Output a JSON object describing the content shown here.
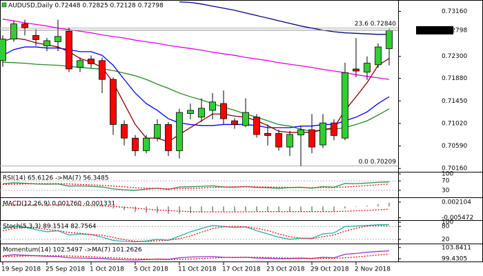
{
  "chart_data": [
    {
      "type": "candlestick",
      "title": "AUDUSD,Daily  0.72448 0.72825 0.72128 0.72798",
      "categories": [
        "19 Sep 2018",
        null,
        null,
        null,
        "25 Sep 2018",
        null,
        null,
        null,
        "1 Oct 2018",
        null,
        null,
        null,
        "5 Oct 2018",
        null,
        null,
        null,
        "11 Oct 2018",
        null,
        null,
        null,
        "17 Oct 2018",
        null,
        null,
        null,
        "23 Oct 2018",
        null,
        null,
        null,
        "29 Oct 2018",
        null,
        null,
        null,
        "2 Nov 2018",
        null,
        null,
        null
      ],
      "open": [
        0.7222,
        0.7263,
        0.7292,
        0.727,
        0.725,
        0.7258,
        0.7278,
        0.7209,
        0.7225,
        0.7222,
        0.7186,
        0.71,
        0.7074,
        0.705,
        0.7074,
        0.71,
        0.705,
        0.7121,
        0.7114,
        0.7127,
        0.714,
        0.7107,
        0.7098,
        0.7114,
        0.7083,
        0.7083,
        0.7057,
        0.708,
        0.709,
        0.7061,
        0.7103,
        0.7074,
        0.7206,
        0.72,
        0.7214,
        0.72448
      ],
      "high": [
        0.727,
        0.7298,
        0.73,
        0.7282,
        0.7265,
        0.73,
        0.7285,
        0.7228,
        0.7232,
        0.7228,
        0.719,
        0.7108,
        0.708,
        0.708,
        0.711,
        0.7105,
        0.713,
        0.714,
        0.715,
        0.716,
        0.7165,
        0.7112,
        0.715,
        0.712,
        0.71,
        0.709,
        0.7088,
        0.7098,
        0.712,
        0.712,
        0.711,
        0.7218,
        0.7265,
        0.723,
        0.7255,
        0.72825
      ],
      "low": [
        0.721,
        0.7258,
        0.727,
        0.725,
        0.724,
        0.724,
        0.72,
        0.72,
        0.7208,
        0.716,
        0.708,
        0.706,
        0.704,
        0.7045,
        0.7068,
        0.704,
        0.7035,
        0.711,
        0.7105,
        0.711,
        0.71,
        0.7092,
        0.7095,
        0.7075,
        0.706,
        0.705,
        0.704,
        0.70209,
        0.7045,
        0.7055,
        0.707,
        0.707,
        0.719,
        0.7185,
        0.7208,
        0.72128
      ],
      "close": [
        0.7263,
        0.7292,
        0.7285,
        0.7262,
        0.726,
        0.7268,
        0.7206,
        0.7222,
        0.7216,
        0.7186,
        0.71,
        0.7074,
        0.705,
        0.7074,
        0.71,
        0.705,
        0.7123,
        0.7127,
        0.7131,
        0.7143,
        0.7111,
        0.71,
        0.7123,
        0.7081,
        0.7079,
        0.7057,
        0.7081,
        0.709,
        0.7057,
        0.7103,
        0.7079,
        0.7199,
        0.7202,
        0.7217,
        0.7248,
        0.72798
      ],
      "up_color": "#32cd32",
      "down_color": "#ff0000",
      "overlays": [
        {
          "color": "#e600e6",
          "values": [
            0.7301,
            0.7298,
            0.7294,
            0.7291,
            0.7288,
            0.7284,
            0.7281,
            0.7278,
            0.7275,
            0.7271,
            0.7268,
            0.7265,
            0.7261,
            0.7258,
            0.7255,
            0.7251,
            0.7248,
            0.7245,
            0.7242,
            0.7238,
            0.7235,
            0.7232,
            0.7228,
            0.7225,
            0.7222,
            0.7218,
            0.7215,
            0.7212,
            0.7209,
            0.7205,
            0.7202,
            0.7199,
            0.7195,
            0.7192,
            0.7189,
            0.7186
          ]
        },
        {
          "color": "#000080",
          "values": [
            null,
            null,
            null,
            null,
            null,
            null,
            null,
            null,
            null,
            null,
            null,
            null,
            null,
            null,
            null,
            null,
            0.7334,
            0.7333,
            0.733,
            0.7326,
            0.7322,
            0.7318,
            0.7313,
            0.7308,
            0.7303,
            0.7298,
            0.7293,
            0.7288,
            0.7284,
            0.728,
            0.7277,
            0.7275,
            0.7274,
            0.7273,
            0.7272,
            0.7272
          ]
        },
        {
          "color": "#228b22",
          "values": [
            0.7219,
            0.7218,
            0.7217,
            0.7215,
            0.7214,
            0.7213,
            0.7211,
            0.7209,
            0.7207,
            0.7206,
            0.7203,
            0.7198,
            0.7193,
            0.7186,
            0.7177,
            0.7169,
            0.716,
            0.7153,
            0.7147,
            0.714,
            0.7133,
            0.7127,
            0.712,
            0.7114,
            0.7107,
            0.71,
            0.7097,
            0.7091,
            0.7087,
            0.709,
            0.7091,
            0.7094,
            0.71,
            0.7107,
            0.7118,
            0.713
          ]
        },
        {
          "color": "#0000ff",
          "values": [
            0.7232,
            0.7243,
            0.7248,
            0.7248,
            0.7246,
            0.7246,
            0.7243,
            0.7239,
            0.7239,
            0.7232,
            0.7213,
            0.7186,
            0.716,
            0.714,
            0.7127,
            0.7111,
            0.7103,
            0.71,
            0.7098,
            0.7098,
            0.71,
            0.71,
            0.71,
            0.7098,
            0.7094,
            0.7094,
            0.7094,
            0.7097,
            0.7097,
            0.71,
            0.71,
            0.7107,
            0.7114,
            0.7124,
            0.714,
            0.7153
          ]
        },
        {
          "color": "#8b0000",
          "values": [
            0.7259,
            0.7265,
            0.7262,
            0.7256,
            0.7252,
            0.7248,
            0.7239,
            0.7226,
            0.7219,
            0.7209,
            0.718,
            0.714,
            0.71,
            0.7074,
            0.7074,
            0.7067,
            0.7081,
            0.7094,
            0.7107,
            0.712,
            0.712,
            0.7116,
            0.7114,
            0.7107,
            0.7098,
            0.7087,
            0.7085,
            0.7085,
            0.7085,
            0.709,
            0.7094,
            0.7127,
            0.7153,
            0.718,
            0.7213,
            0.7226
          ]
        }
      ],
      "levels": [
        {
          "label": "23.6 0.72840",
          "value": 0.7284
        },
        {
          "label": "0.0 0.70209",
          "value": 0.70209
        }
      ],
      "current_price": {
        "value": 0.72798,
        "label": "0.72798"
      },
      "ylim": [
        0.7011,
        0.7335
      ],
      "yticks": [
        {
          "value": 0.7316,
          "label": "0.73160"
        },
        {
          "value": 0.723,
          "label": "0.72300"
        },
        {
          "value": 0.7188,
          "label": "0.71880"
        },
        {
          "value": 0.7145,
          "label": "0.71450"
        },
        {
          "value": 0.7102,
          "label": "0.71020"
        },
        {
          "value": 0.7059,
          "label": "0.70590"
        },
        {
          "value": 0.7016,
          "label": "0.70160"
        }
      ]
    },
    {
      "type": "line",
      "title": "RSI(14) 65.6126 ->MA(7) 56.3485",
      "series": [
        {
          "color": "#2e8b57",
          "values": [
            58,
            62,
            60,
            57,
            56,
            57,
            48,
            49,
            47,
            44,
            36,
            32,
            30,
            35,
            39,
            34,
            44,
            45,
            47,
            49,
            44,
            43,
            46,
            42,
            41,
            38,
            42,
            43,
            39,
            46,
            43,
            59,
            58,
            61,
            64,
            65.6126
          ]
        },
        {
          "color": "#ff0000",
          "dash": true,
          "values": [
            55,
            56,
            57,
            58,
            58,
            58,
            57,
            55,
            53,
            51,
            48,
            45,
            41,
            39,
            38,
            36,
            37,
            38,
            40,
            42,
            44,
            45,
            45,
            45,
            44,
            43,
            42,
            42,
            41,
            42,
            42,
            44,
            47,
            50,
            54,
            56.3485
          ]
        }
      ],
      "levels": [
        70,
        30
      ],
      "ylim": [
        0,
        100
      ],
      "yticks": [
        100,
        70,
        30
      ]
    },
    {
      "type": "macd",
      "title": "MACD(12,26,9) 0.001760 -0.001331",
      "series": [
        {
          "color": "#808080",
          "values": [
            0.0006,
            0.0008,
            0.0009,
            0.0008,
            0.0007,
            0.0007,
            0.0004,
            0.0002,
            0.0,
            -0.0003,
            -0.001,
            -0.0018,
            -0.0026,
            -0.003,
            -0.0032,
            -0.0036,
            -0.0034,
            -0.0032,
            -0.0029,
            -0.0026,
            -0.0025,
            -0.0025,
            -0.0023,
            -0.0023,
            -0.0024,
            -0.0026,
            -0.0026,
            -0.0025,
            -0.0026,
            -0.0024,
            -0.0023,
            -0.001,
            -0.0002,
            0.0005,
            0.0012,
            0.00176
          ]
        },
        {
          "color": "#ff0000",
          "dash": true,
          "values": [
            0.0005,
            0.0006,
            0.0006,
            0.0007,
            0.0007,
            0.0007,
            0.0006,
            0.0005,
            0.0004,
            0.0003,
            0.0,
            -0.0004,
            -0.0008,
            -0.0013,
            -0.0017,
            -0.002,
            -0.0023,
            -0.0025,
            -0.0026,
            -0.0026,
            -0.0026,
            -0.0026,
            -0.0026,
            -0.0025,
            -0.0025,
            -0.0025,
            -0.0025,
            -0.0025,
            -0.0025,
            -0.0025,
            -0.0025,
            -0.0023,
            -0.0021,
            -0.0019,
            -0.0016,
            -0.001331
          ]
        }
      ],
      "ylim": [
        -0.0066,
        0.0034
      ],
      "yticks": [
        0.002104,
        -0.005472
      ]
    },
    {
      "type": "line",
      "title": "Stoch(5,3,3) 89.1514 82.7564",
      "series": [
        {
          "color": "#20b2aa",
          "values": [
            70,
            80,
            78,
            65,
            55,
            60,
            40,
            45,
            42,
            30,
            15,
            10,
            8,
            12,
            20,
            15,
            35,
            55,
            70,
            85,
            80,
            75,
            78,
            60,
            45,
            30,
            20,
            25,
            25,
            45,
            50,
            80,
            82,
            85,
            88,
            89.1514
          ]
        },
        {
          "color": "#ff0000",
          "dash": true,
          "values": [
            60,
            70,
            76,
            74,
            66,
            60,
            52,
            48,
            42,
            39,
            29,
            18,
            11,
            10,
            13,
            16,
            23,
            35,
            53,
            70,
            78,
            80,
            78,
            71,
            61,
            45,
            32,
            25,
            23,
            32,
            40,
            58,
            71,
            82,
            85,
            82.7564
          ]
        }
      ],
      "levels": [
        80,
        20
      ],
      "ylim": [
        0,
        100
      ],
      "yticks": [
        100,
        80,
        20
      ]
    },
    {
      "type": "line",
      "title": "Momentum(14) 102.5497 ->MA(7) 101.2626",
      "series": [
        {
          "color": "#9932cc",
          "values": [
            100.5,
            101.0,
            100.8,
            100.6,
            100.4,
            100.3,
            99.8,
            99.7,
            99.6,
            99.5,
            99.2,
            99.0,
            98.9,
            99.1,
            99.3,
            99.2,
            99.8,
            100.1,
            100.2,
            100.3,
            100.0,
            99.9,
            100.0,
            99.7,
            99.6,
            99.4,
            99.5,
            99.6,
            99.5,
            100.0,
            99.8,
            101.2,
            101.5,
            102.0,
            102.3,
            102.5497
          ]
        },
        {
          "color": "#ff0000",
          "dash": true,
          "values": [
            100.3,
            100.4,
            100.5,
            100.6,
            100.6,
            100.6,
            100.5,
            100.4,
            100.2,
            100.0,
            99.8,
            99.6,
            99.4,
            99.3,
            99.2,
            99.1,
            99.2,
            99.3,
            99.5,
            99.7,
            99.9,
            100.0,
            100.0,
            100.0,
            99.9,
            99.8,
            99.7,
            99.7,
            99.6,
            99.6,
            99.6,
            99.8,
            100.1,
            100.5,
            100.9,
            101.2626
          ]
        }
      ],
      "ylim": [
        98.6,
        104.6
      ],
      "yticks": [
        103.8411,
        99.4305
      ]
    }
  ]
}
